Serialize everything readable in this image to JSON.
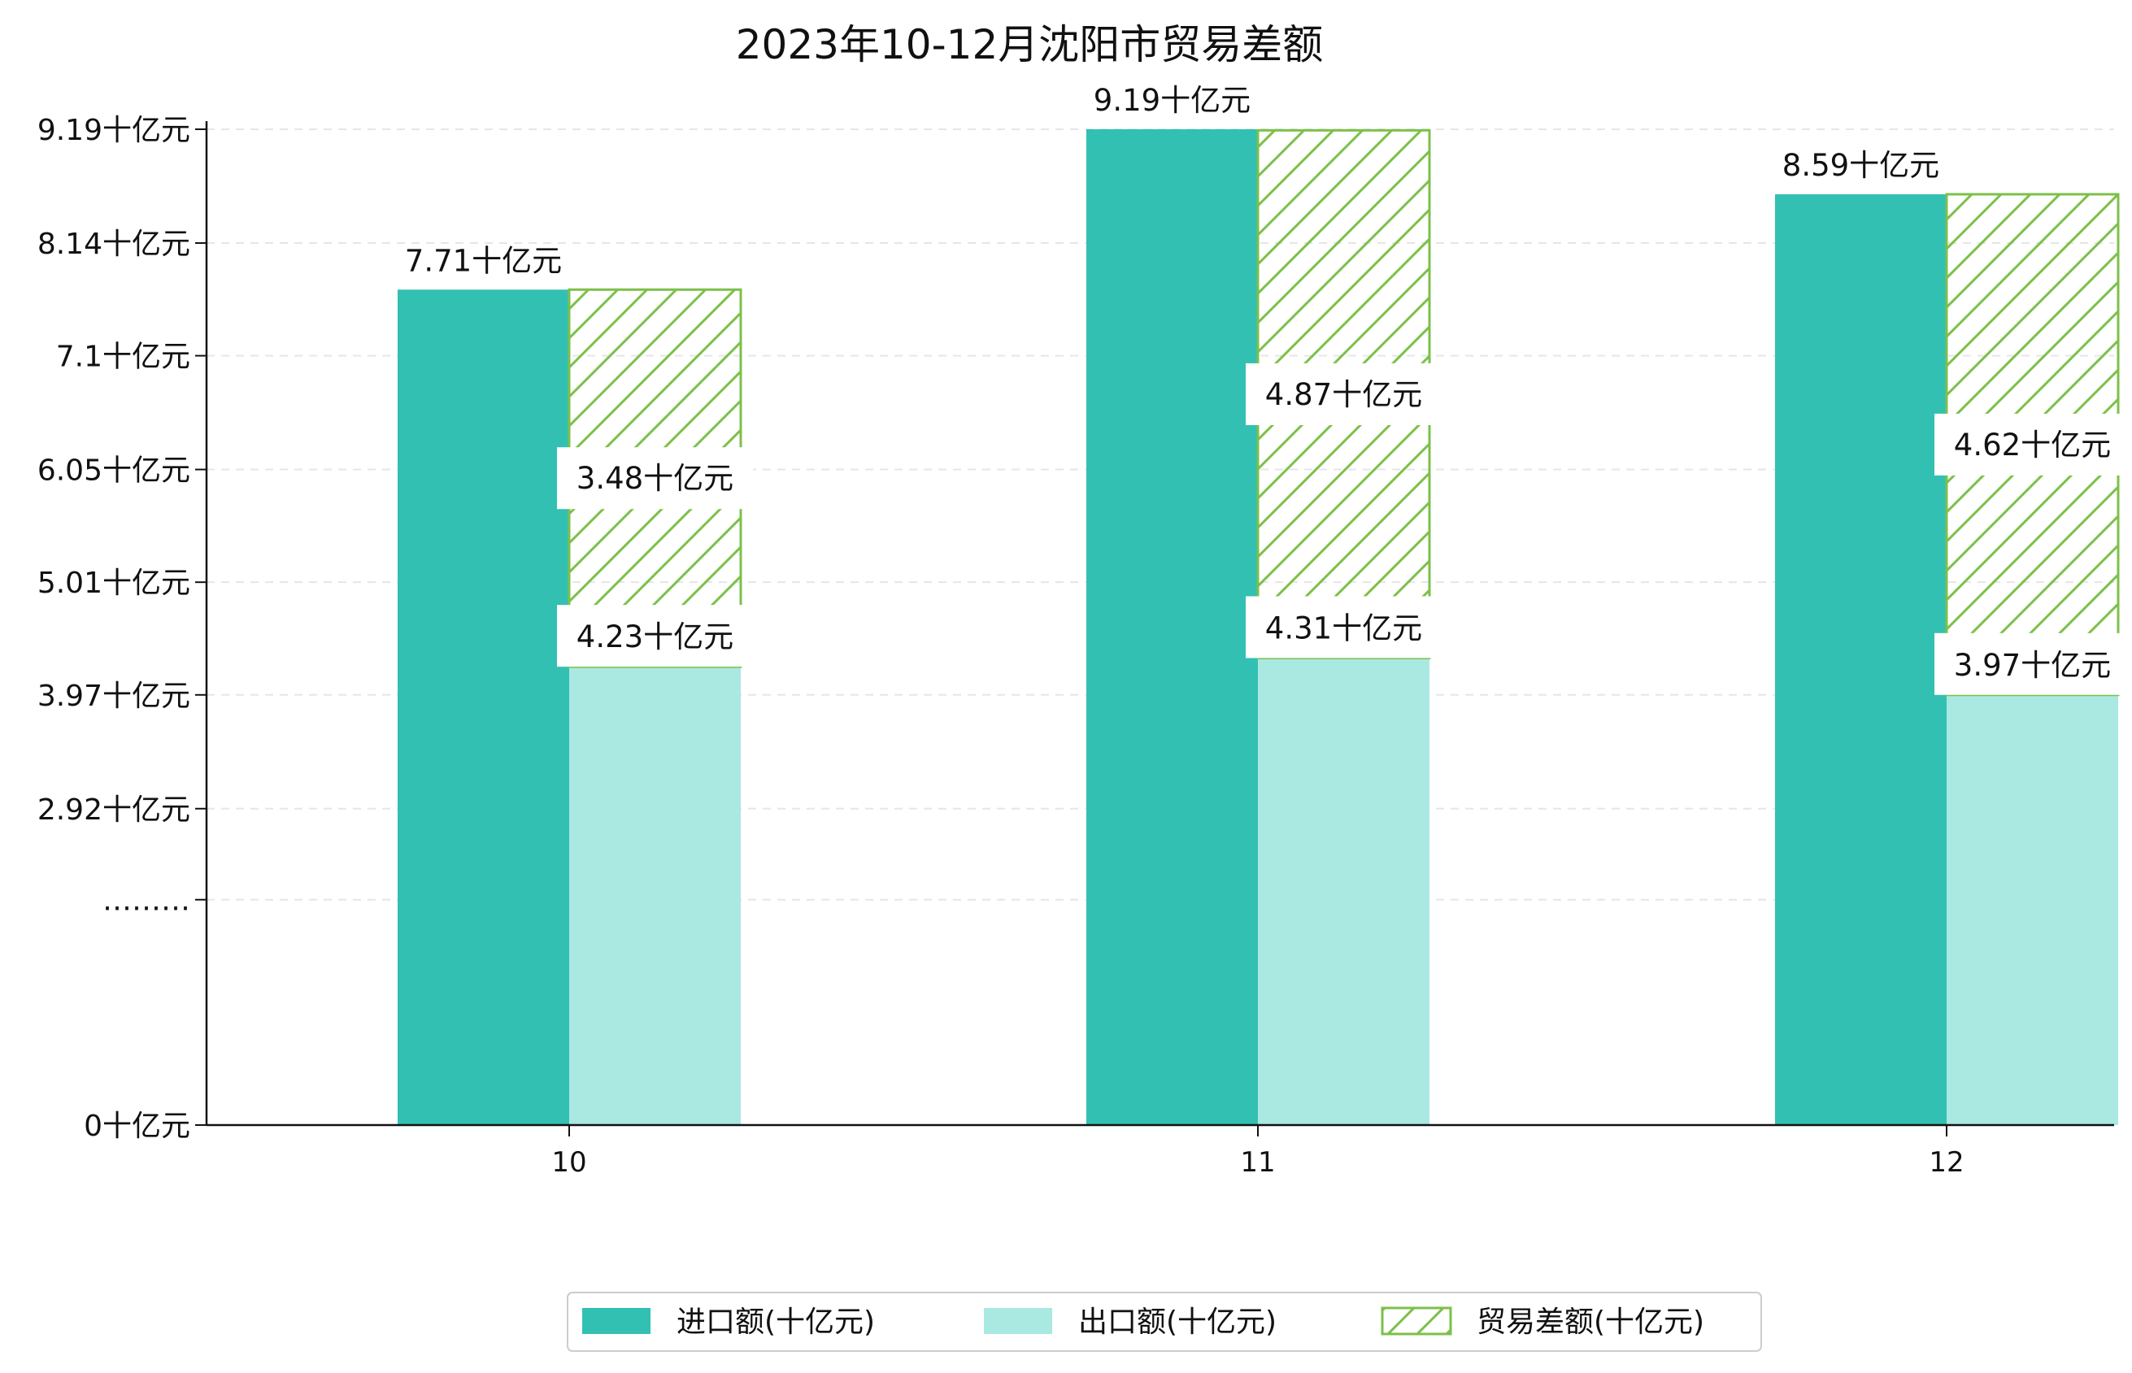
{
  "chart_data": {
    "type": "bar",
    "title": "2023年10-12月沈阳市贸易差额",
    "categories": [
      "10",
      "11",
      "12"
    ],
    "ylim": [
      0,
      9.19
    ],
    "yticks": [
      {
        "value": 0,
        "label": "0十亿元"
      },
      {
        "value": 2.08,
        "label": "………"
      },
      {
        "value": 2.92,
        "label": "2.92十亿元"
      },
      {
        "value": 3.97,
        "label": "3.97十亿元"
      },
      {
        "value": 5.01,
        "label": "5.01十亿元"
      },
      {
        "value": 6.05,
        "label": "6.05十亿元"
      },
      {
        "value": 7.1,
        "label": "7.1十亿元"
      },
      {
        "value": 8.14,
        "label": "8.14十亿元"
      },
      {
        "value": 9.19,
        "label": "9.19十亿元"
      }
    ],
    "grid": "horizontal-dashed",
    "legend_position": "bottom-center",
    "series": [
      {
        "name": "进口额(十亿元)",
        "color": "#32c0b2",
        "values": [
          7.71,
          9.19,
          8.59
        ],
        "labels": [
          "7.71十亿元",
          "9.19十亿元",
          "8.59十亿元"
        ]
      },
      {
        "name": "出口额(十亿元)",
        "color": "#aae8e2",
        "values": [
          4.23,
          4.31,
          3.97
        ],
        "labels": [
          "4.23十亿元",
          "4.31十亿元",
          "3.97十亿元"
        ]
      },
      {
        "name": "贸易差额(十亿元)",
        "color": "#7cc04a",
        "values": [
          3.48,
          4.87,
          4.62
        ],
        "labels": [
          "3.48十亿元",
          "4.87十亿元",
          "4.62十亿元"
        ],
        "stacked_on": "出口额(十亿元)",
        "hatch": "/"
      }
    ]
  }
}
